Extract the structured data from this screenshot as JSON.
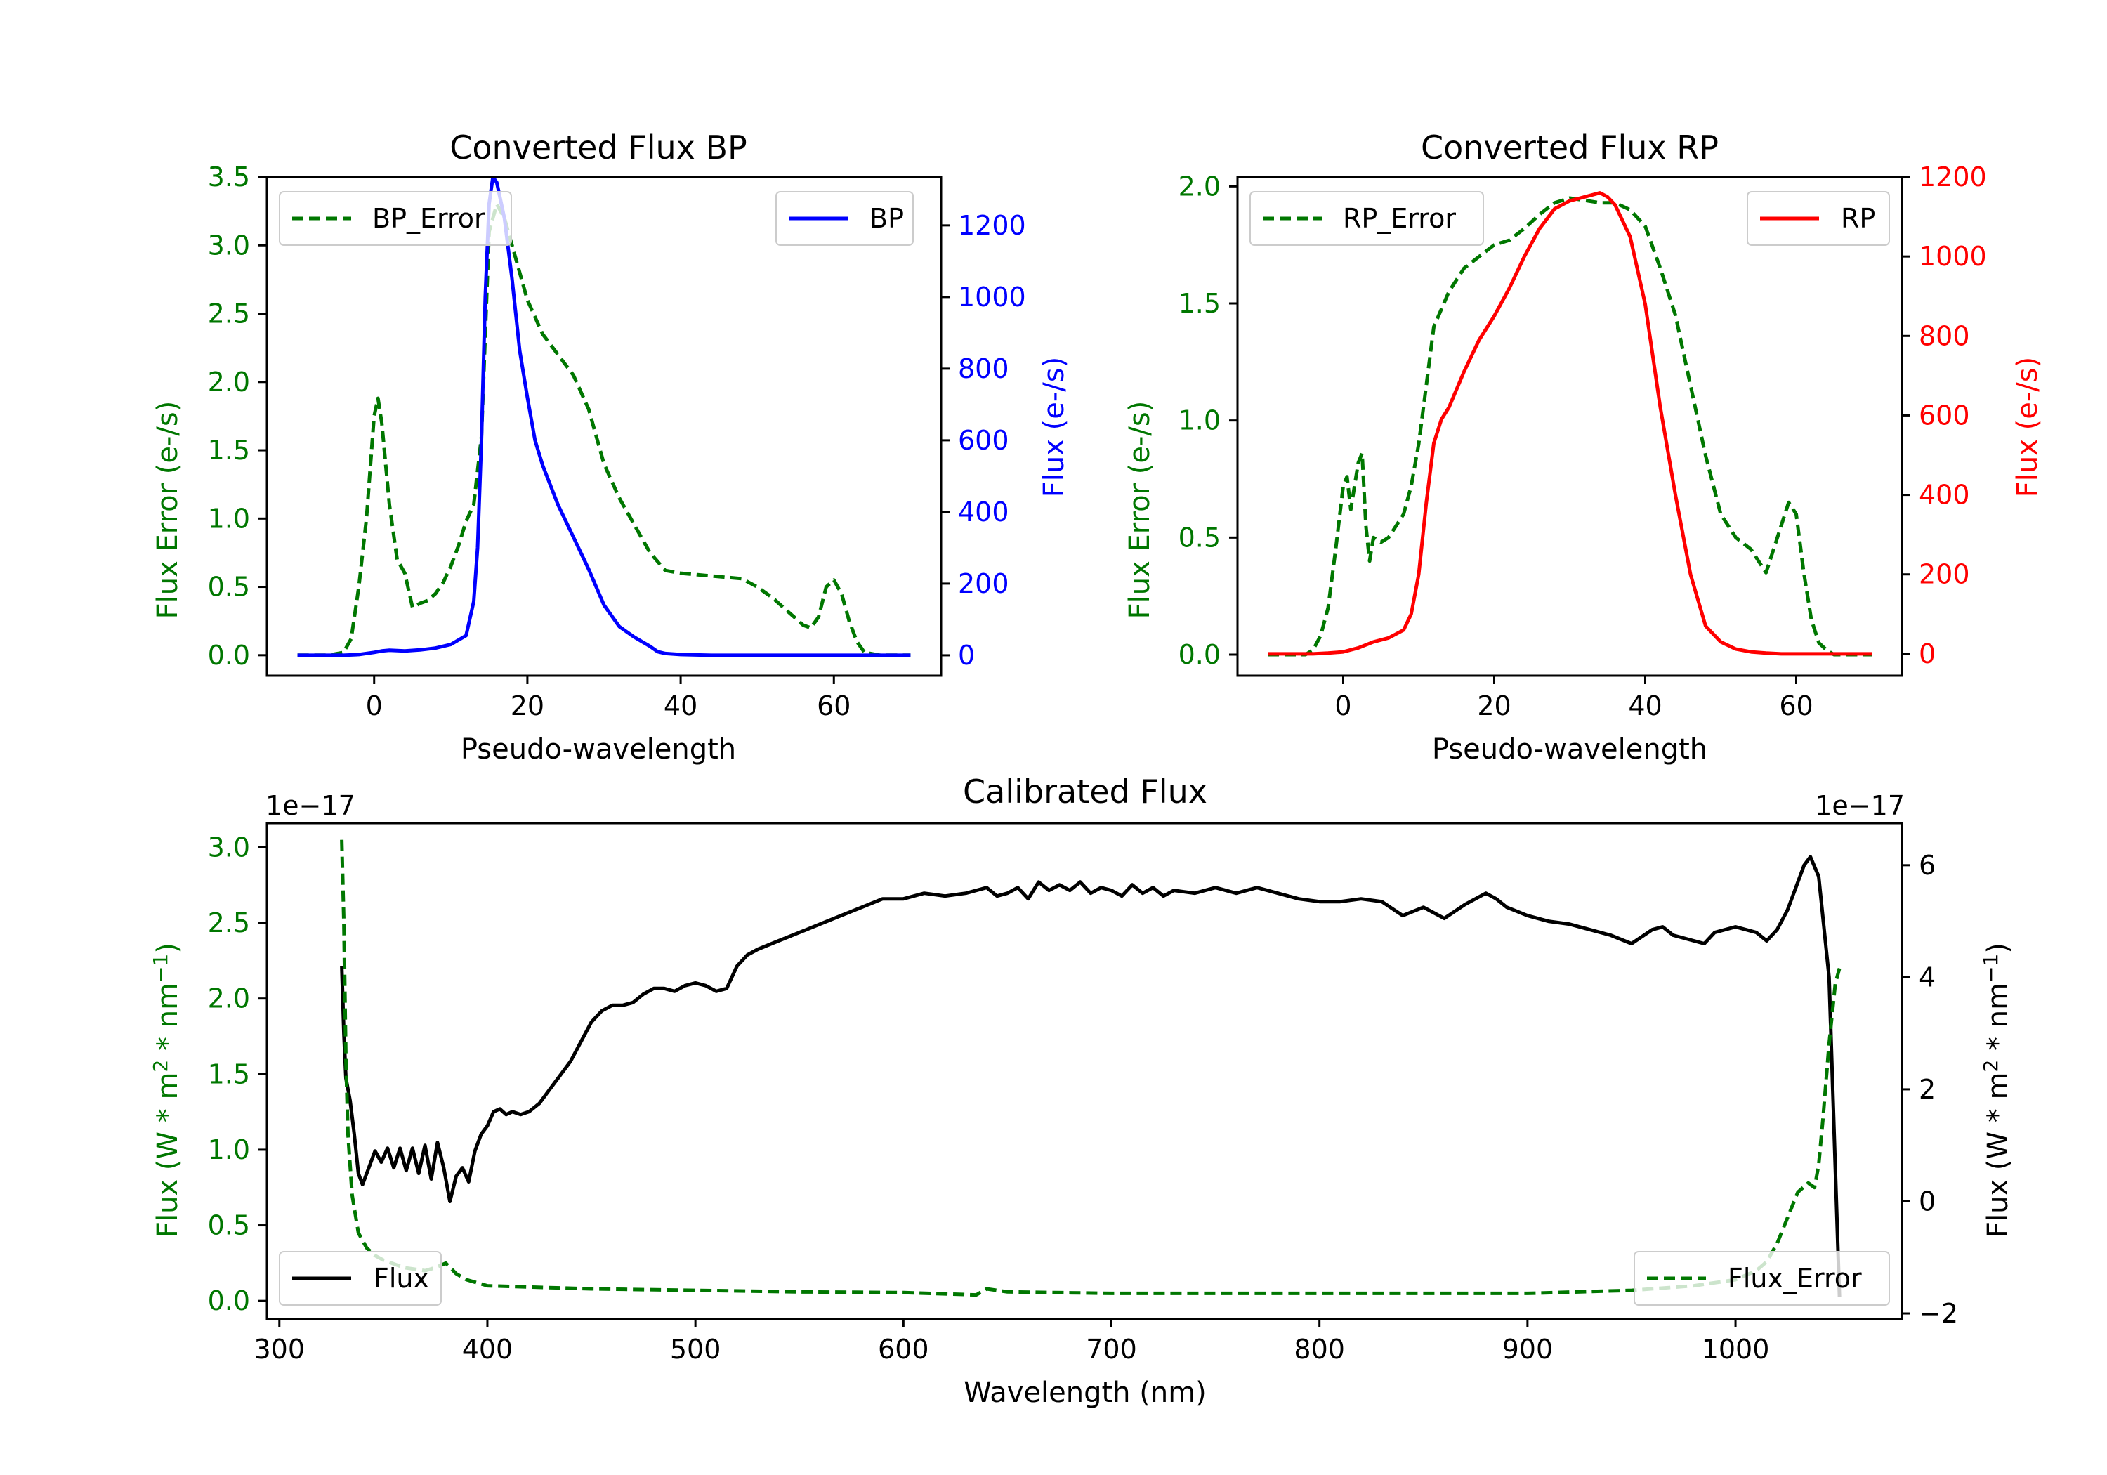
{
  "colors": {
    "error": "#007700",
    "bp": "#0000ff",
    "rp": "#ff0000",
    "flux": "#000000",
    "axis": "#000000"
  },
  "chart_data": [
    {
      "id": "bp",
      "type": "line",
      "title": "Converted Flux BP",
      "xlabel": "Pseudo-wavelength",
      "ylabel_left": "Flux Error (e-/s)",
      "ylabel_right": "Flux (e-/s)",
      "xlim": [
        -14,
        74
      ],
      "ylim_left": [
        -0.15,
        3.5
      ],
      "ylim_right": [
        -57,
        1335
      ],
      "xticks": [
        "0",
        "20",
        "40",
        "60"
      ],
      "xtick_values": [
        0,
        20,
        40,
        60
      ],
      "yticks_left": [
        "0.0",
        "0.5",
        "1.0",
        "1.5",
        "2.0",
        "2.5",
        "3.0",
        "3.5"
      ],
      "ytick_left_values": [
        0,
        0.5,
        1.0,
        1.5,
        2.0,
        2.5,
        3.0,
        3.5
      ],
      "yticks_right": [
        "0",
        "200",
        "400",
        "600",
        "800",
        "1000",
        "1200"
      ],
      "ytick_right_values": [
        0,
        200,
        400,
        600,
        800,
        1000,
        1200
      ],
      "legend_left": "top-left",
      "legend_right": "top-right",
      "series": [
        {
          "name": "BP_Error",
          "axis": "left",
          "style": "dashed",
          "color": "#007700",
          "legend_label": "BP_Error",
          "x": [
            -10,
            -6,
            -4,
            -3,
            -2,
            -1,
            0,
            0.5,
            1,
            2,
            3,
            4,
            5,
            6,
            7,
            8,
            9,
            10,
            11,
            12,
            13,
            14,
            15,
            16,
            17,
            18,
            19,
            20,
            22,
            24,
            26,
            28,
            30,
            32,
            34,
            36,
            38,
            40,
            44,
            48,
            50,
            52,
            54,
            56,
            57,
            58,
            59,
            60,
            61,
            62,
            63,
            64,
            66,
            70
          ],
          "y": [
            0,
            0,
            0.02,
            0.12,
            0.5,
            1.0,
            1.75,
            1.88,
            1.7,
            1.1,
            0.7,
            0.6,
            0.35,
            0.38,
            0.4,
            0.45,
            0.53,
            0.65,
            0.8,
            0.98,
            1.1,
            1.6,
            3.1,
            3.3,
            3.2,
            3.0,
            2.8,
            2.6,
            2.35,
            2.2,
            2.05,
            1.8,
            1.4,
            1.15,
            0.95,
            0.75,
            0.62,
            0.6,
            0.58,
            0.56,
            0.5,
            0.42,
            0.32,
            0.22,
            0.2,
            0.28,
            0.5,
            0.55,
            0.45,
            0.25,
            0.1,
            0.02,
            0.0,
            0.0
          ]
        },
        {
          "name": "BP",
          "axis": "right",
          "style": "solid",
          "color": "#0000ff",
          "legend_label": "BP",
          "x": [
            -10,
            -4,
            -2,
            0,
            1,
            2,
            4,
            6,
            8,
            10,
            12,
            13,
            13.5,
            14,
            14.5,
            15,
            15.5,
            16,
            17,
            18,
            19,
            20,
            21,
            22,
            24,
            26,
            28,
            30,
            32,
            34,
            36,
            37,
            38,
            40,
            44,
            50,
            56,
            60,
            66,
            70
          ],
          "y": [
            0,
            0,
            2,
            8,
            12,
            14,
            12,
            15,
            20,
            30,
            55,
            150,
            300,
            600,
            1000,
            1260,
            1335,
            1320,
            1220,
            1050,
            850,
            720,
            600,
            530,
            420,
            330,
            240,
            140,
            80,
            50,
            25,
            10,
            5,
            2,
            0,
            0,
            0,
            0,
            0,
            0
          ]
        }
      ]
    },
    {
      "id": "rp",
      "type": "line",
      "title": "Converted Flux RP",
      "xlabel": "Pseudo-wavelength",
      "ylabel_left": "Flux Error (e-/s)",
      "ylabel_right": "Flux (e-/s)",
      "xlim": [
        -14,
        74
      ],
      "ylim_left": [
        -0.09,
        2.04
      ],
      "ylim_right": [
        -55,
        1200
      ],
      "xticks": [
        "0",
        "20",
        "40",
        "60"
      ],
      "xtick_values": [
        0,
        20,
        40,
        60
      ],
      "yticks_left": [
        "0.0",
        "0.5",
        "1.0",
        "1.5",
        "2.0"
      ],
      "ytick_left_values": [
        0,
        0.5,
        1.0,
        1.5,
        2.0
      ],
      "yticks_right": [
        "0",
        "200",
        "400",
        "600",
        "800",
        "1000",
        "1200"
      ],
      "ytick_right_values": [
        0,
        200,
        400,
        600,
        800,
        1000,
        1200
      ],
      "legend_left": "top-left",
      "legend_right": "top-right",
      "series": [
        {
          "name": "RP_Error",
          "axis": "left",
          "style": "dashed",
          "color": "#007700",
          "legend_label": "RP_Error",
          "x": [
            -10,
            -5,
            -4,
            -3,
            -2,
            -1,
            0,
            0.5,
            1,
            1.5,
            2,
            2.5,
            3,
            3.5,
            4,
            5,
            6,
            7,
            8,
            9,
            10,
            11,
            12,
            14,
            16,
            18,
            20,
            22,
            24,
            26,
            28,
            30,
            32,
            34,
            36,
            38,
            40,
            42,
            44,
            46,
            48,
            50,
            52,
            54,
            55,
            56,
            57,
            58,
            59,
            60,
            61,
            62,
            63,
            64,
            65,
            66,
            70
          ],
          "y": [
            0,
            0,
            0.02,
            0.08,
            0.2,
            0.45,
            0.72,
            0.76,
            0.62,
            0.72,
            0.82,
            0.86,
            0.55,
            0.4,
            0.5,
            0.48,
            0.5,
            0.55,
            0.6,
            0.72,
            0.9,
            1.15,
            1.4,
            1.55,
            1.65,
            1.7,
            1.75,
            1.77,
            1.82,
            1.88,
            1.93,
            1.95,
            1.94,
            1.93,
            1.93,
            1.9,
            1.83,
            1.65,
            1.45,
            1.15,
            0.85,
            0.6,
            0.5,
            0.45,
            0.4,
            0.35,
            0.45,
            0.55,
            0.65,
            0.6,
            0.35,
            0.15,
            0.05,
            0.02,
            0,
            0,
            0
          ]
        },
        {
          "name": "RP",
          "axis": "right",
          "style": "solid",
          "color": "#ff0000",
          "legend_label": "RP",
          "x": [
            -10,
            -4,
            -2,
            0,
            2,
            4,
            6,
            8,
            9,
            10,
            11,
            12,
            13,
            14,
            16,
            18,
            20,
            22,
            24,
            26,
            28,
            30,
            32,
            34,
            35,
            36,
            38,
            40,
            42,
            44,
            46,
            48,
            50,
            52,
            54,
            56,
            58,
            60,
            62,
            66,
            70
          ],
          "y": [
            0,
            0,
            2,
            5,
            15,
            30,
            40,
            60,
            100,
            200,
            380,
            530,
            590,
            620,
            710,
            790,
            850,
            920,
            1000,
            1070,
            1120,
            1140,
            1150,
            1160,
            1150,
            1130,
            1050,
            880,
            620,
            400,
            200,
            70,
            30,
            12,
            5,
            2,
            0,
            0,
            0,
            0,
            0
          ]
        }
      ]
    },
    {
      "id": "calibrated",
      "type": "line",
      "title": "Calibrated Flux",
      "xlabel": "Wavelength (nm)",
      "ylabel_left": "Flux (W * m² * nm⁻¹)",
      "ylabel_right": "Flux (W * m² * nm⁻¹)",
      "offset_left": "1e−17",
      "offset_right": "1e−17",
      "xlim": [
        294,
        1080
      ],
      "ylim_left": [
        -0.12,
        3.16
      ],
      "ylim_right": [
        -2.1,
        6.75
      ],
      "xticks": [
        "300",
        "400",
        "500",
        "600",
        "700",
        "800",
        "900",
        "1000"
      ],
      "xtick_values": [
        300,
        400,
        500,
        600,
        700,
        800,
        900,
        1000
      ],
      "yticks_left": [
        "0.0",
        "0.5",
        "1.0",
        "1.5",
        "2.0",
        "2.5",
        "3.0"
      ],
      "ytick_left_values": [
        0,
        0.5,
        1.0,
        1.5,
        2.0,
        2.5,
        3.0
      ],
      "yticks_right": [
        "−2",
        "0",
        "2",
        "4",
        "6"
      ],
      "ytick_right_values": [
        -2,
        0,
        2,
        4,
        6
      ],
      "legend_left": "bottom-left",
      "legend_right": "bottom-right",
      "series": [
        {
          "name": "Flux",
          "axis": "right",
          "style": "solid",
          "color": "#000000",
          "legend_label": "Flux",
          "x": [
            330,
            331,
            332,
            334,
            336,
            338,
            340,
            343,
            346,
            349,
            352,
            355,
            358,
            361,
            364,
            367,
            370,
            373,
            376,
            379,
            382,
            385,
            388,
            391,
            394,
            397,
            400,
            403,
            406,
            409,
            412,
            416,
            420,
            425,
            430,
            435,
            440,
            445,
            450,
            455,
            460,
            465,
            470,
            475,
            480,
            485,
            490,
            495,
            500,
            505,
            510,
            515,
            520,
            525,
            530,
            540,
            550,
            560,
            570,
            580,
            590,
            600,
            610,
            620,
            630,
            640,
            645,
            650,
            655,
            660,
            665,
            670,
            675,
            680,
            685,
            690,
            695,
            700,
            705,
            710,
            715,
            720,
            725,
            730,
            740,
            750,
            760,
            770,
            780,
            790,
            800,
            810,
            820,
            830,
            840,
            850,
            860,
            870,
            880,
            885,
            890,
            900,
            910,
            920,
            930,
            940,
            950,
            960,
            965,
            970,
            980,
            985,
            990,
            1000,
            1010,
            1015,
            1020,
            1025,
            1030,
            1033,
            1036,
            1040,
            1045,
            1050
          ],
          "y": [
            4.2,
            3.0,
            2.2,
            1.8,
            1.2,
            0.5,
            0.3,
            0.6,
            0.9,
            0.7,
            0.95,
            0.6,
            0.95,
            0.55,
            0.95,
            0.5,
            1.0,
            0.4,
            1.05,
            0.6,
            0.0,
            0.45,
            0.6,
            0.35,
            0.9,
            1.2,
            1.35,
            1.6,
            1.65,
            1.55,
            1.6,
            1.55,
            1.6,
            1.75,
            2.0,
            2.25,
            2.5,
            2.85,
            3.2,
            3.4,
            3.5,
            3.5,
            3.55,
            3.7,
            3.8,
            3.8,
            3.75,
            3.85,
            3.9,
            3.85,
            3.75,
            3.8,
            4.2,
            4.4,
            4.5,
            4.65,
            4.8,
            4.95,
            5.1,
            5.25,
            5.4,
            5.4,
            5.5,
            5.45,
            5.5,
            5.6,
            5.45,
            5.5,
            5.6,
            5.4,
            5.7,
            5.55,
            5.65,
            5.55,
            5.7,
            5.5,
            5.6,
            5.55,
            5.45,
            5.65,
            5.5,
            5.6,
            5.45,
            5.55,
            5.5,
            5.6,
            5.5,
            5.6,
            5.5,
            5.4,
            5.35,
            5.35,
            5.4,
            5.35,
            5.1,
            5.25,
            5.05,
            5.3,
            5.5,
            5.4,
            5.25,
            5.1,
            5.0,
            4.95,
            4.85,
            4.75,
            4.6,
            4.85,
            4.9,
            4.75,
            4.65,
            4.6,
            4.8,
            4.9,
            4.8,
            4.65,
            4.85,
            5.2,
            5.7,
            6.0,
            6.15,
            5.8,
            4.0,
            -1.7
          ]
        },
        {
          "name": "Flux_Error",
          "axis": "left",
          "style": "dashed",
          "color": "#007700",
          "legend_label": "Flux_Error",
          "x": [
            330,
            331,
            332,
            333,
            335,
            338,
            342,
            346,
            350,
            360,
            370,
            375,
            380,
            385,
            390,
            400,
            450,
            500,
            550,
            600,
            635,
            640,
            650,
            700,
            750,
            800,
            850,
            900,
            950,
            980,
            1000,
            1010,
            1015,
            1020,
            1025,
            1030,
            1035,
            1038,
            1040,
            1042,
            1045,
            1048,
            1050
          ],
          "y": [
            3.05,
            2.5,
            1.6,
            1.1,
            0.7,
            0.45,
            0.35,
            0.3,
            0.27,
            0.22,
            0.2,
            0.22,
            0.25,
            0.18,
            0.14,
            0.1,
            0.08,
            0.07,
            0.06,
            0.055,
            0.04,
            0.08,
            0.06,
            0.05,
            0.05,
            0.05,
            0.05,
            0.05,
            0.07,
            0.1,
            0.14,
            0.2,
            0.26,
            0.38,
            0.55,
            0.72,
            0.78,
            0.75,
            0.9,
            1.2,
            1.7,
            2.1,
            2.2
          ]
        }
      ]
    }
  ]
}
